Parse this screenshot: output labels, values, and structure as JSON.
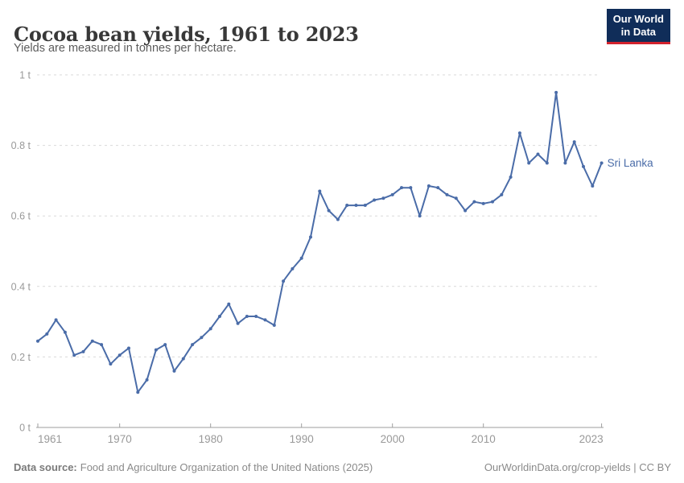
{
  "header": {
    "title": "Cocoa bean yields, 1961 to 2023",
    "subtitle": "Yields are measured in tonnes per hectare.",
    "logo": {
      "line1": "Our World",
      "line2": "in Data"
    }
  },
  "footer": {
    "source_label": "Data source:",
    "source_text": "Food and Agriculture Organization of the United Nations (2025)",
    "credit": "OurWorldinData.org/crop-yields | CC BY"
  },
  "colors": {
    "line": "#4A6CA8",
    "grid": "#d9d9d9",
    "axis": "#9e9e9e",
    "tick_label": "#999999",
    "logo_bg": "#102D59",
    "logo_red": "#D2222D"
  },
  "chart_data": {
    "type": "line",
    "title": "Cocoa bean yields, 1961 to 2023",
    "xlabel": "",
    "ylabel": "tonnes per hectare",
    "xlim": [
      1961,
      2023
    ],
    "ylim": [
      0,
      1
    ],
    "grid": "horizontal-dashed",
    "legend_position": "end-of-line-label",
    "x_ticks": [
      1961,
      1970,
      1980,
      1990,
      2000,
      2010,
      2023
    ],
    "y_ticks": [
      0,
      0.2,
      0.4,
      0.6,
      0.8,
      1
    ],
    "y_tick_labels": [
      "0 t",
      "0.2 t",
      "0.4 t",
      "0.6 t",
      "0.8 t",
      "1 t"
    ],
    "series": [
      {
        "name": "Sri Lanka",
        "color": "#4A6CA8",
        "x": [
          1961,
          1962,
          1963,
          1964,
          1965,
          1966,
          1967,
          1968,
          1969,
          1970,
          1971,
          1972,
          1973,
          1974,
          1975,
          1976,
          1977,
          1978,
          1979,
          1980,
          1981,
          1982,
          1983,
          1984,
          1985,
          1986,
          1987,
          1988,
          1989,
          1990,
          1991,
          1992,
          1993,
          1994,
          1995,
          1996,
          1997,
          1998,
          1999,
          2000,
          2001,
          2002,
          2003,
          2004,
          2005,
          2006,
          2007,
          2008,
          2009,
          2010,
          2011,
          2012,
          2013,
          2014,
          2015,
          2016,
          2017,
          2018,
          2019,
          2020,
          2021,
          2022,
          2023
        ],
        "values": [
          0.245,
          0.265,
          0.305,
          0.27,
          0.205,
          0.215,
          0.245,
          0.235,
          0.18,
          0.205,
          0.225,
          0.1,
          0.135,
          0.22,
          0.235,
          0.16,
          0.195,
          0.235,
          0.255,
          0.28,
          0.315,
          0.35,
          0.295,
          0.315,
          0.315,
          0.305,
          0.29,
          0.415,
          0.45,
          0.48,
          0.54,
          0.67,
          0.615,
          0.59,
          0.63,
          0.63,
          0.63,
          0.645,
          0.65,
          0.66,
          0.68,
          0.68,
          0.6,
          0.685,
          0.68,
          0.66,
          0.65,
          0.615,
          0.64,
          0.635,
          0.64,
          0.66,
          0.71,
          0.835,
          0.75,
          0.775,
          0.75,
          0.95,
          0.75,
          0.81,
          0.74,
          0.685,
          0.75
        ]
      }
    ]
  }
}
